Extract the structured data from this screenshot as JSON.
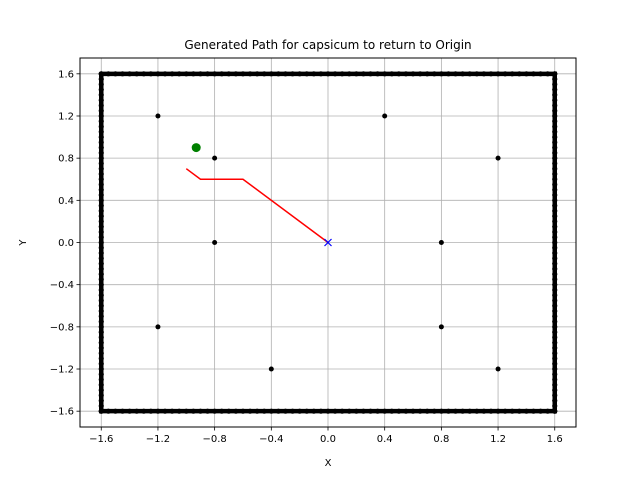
{
  "chart_data": {
    "type": "scatter",
    "title": "Generated Path for capsicum to return to Origin",
    "xlabel": "X",
    "ylabel": "Y",
    "xlim": [
      -1.75,
      1.75
    ],
    "ylim": [
      -1.75,
      1.75
    ],
    "xticks": [
      -1.6,
      -1.2,
      -0.8,
      -0.4,
      0.0,
      0.4,
      0.8,
      1.2,
      1.6
    ],
    "yticks": [
      -1.6,
      -1.2,
      -0.8,
      -0.4,
      0.0,
      0.4,
      0.8,
      1.2,
      1.6
    ],
    "tick_labels": [
      "−1.6",
      "−1.2",
      "−0.8",
      "−0.4",
      "0.0",
      "0.4",
      "0.8",
      "1.2",
      "1.6"
    ],
    "grid": true,
    "boundary": {
      "x": [
        -1.6,
        1.6,
        1.6,
        -1.6,
        -1.6
      ],
      "y": [
        1.6,
        1.6,
        -1.6,
        -1.6,
        1.6
      ],
      "color": "#000000"
    },
    "obstacles": {
      "color": "#000000",
      "points": [
        [
          -1.2,
          1.2
        ],
        [
          0.4,
          1.2
        ],
        [
          -0.8,
          0.8
        ],
        [
          1.2,
          0.8
        ],
        [
          -0.8,
          0.0
        ],
        [
          0.8,
          0.0
        ],
        [
          -1.2,
          -0.8
        ],
        [
          0.8,
          -0.8
        ],
        [
          -0.4,
          -1.2
        ],
        [
          1.2,
          -1.2
        ]
      ]
    },
    "start": {
      "x": -0.93,
      "y": 0.9,
      "color": "#008000"
    },
    "path": {
      "color": "#ff0000",
      "x": [
        -1.0,
        -0.9,
        -0.6,
        0.0
      ],
      "y": [
        0.7,
        0.6,
        0.6,
        0.0
      ]
    },
    "goal": {
      "x": 0.0,
      "y": 0.0,
      "color": "#0000ff"
    }
  }
}
